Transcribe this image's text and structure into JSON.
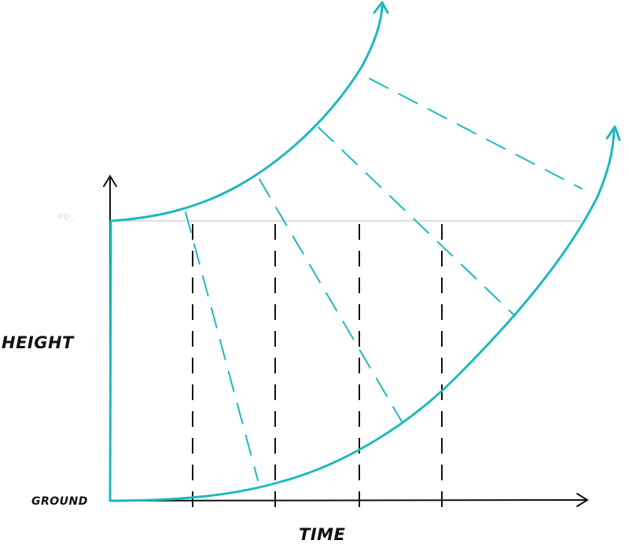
{
  "labels": {
    "y_axis": "HEIGHT",
    "x_axis": "TIME",
    "ground": "GROUND",
    "faint_label": "PO_"
  },
  "colors": {
    "curve": "#1fb8bd",
    "axes": "#111111",
    "reference_line": "#bbbbbb"
  }
}
